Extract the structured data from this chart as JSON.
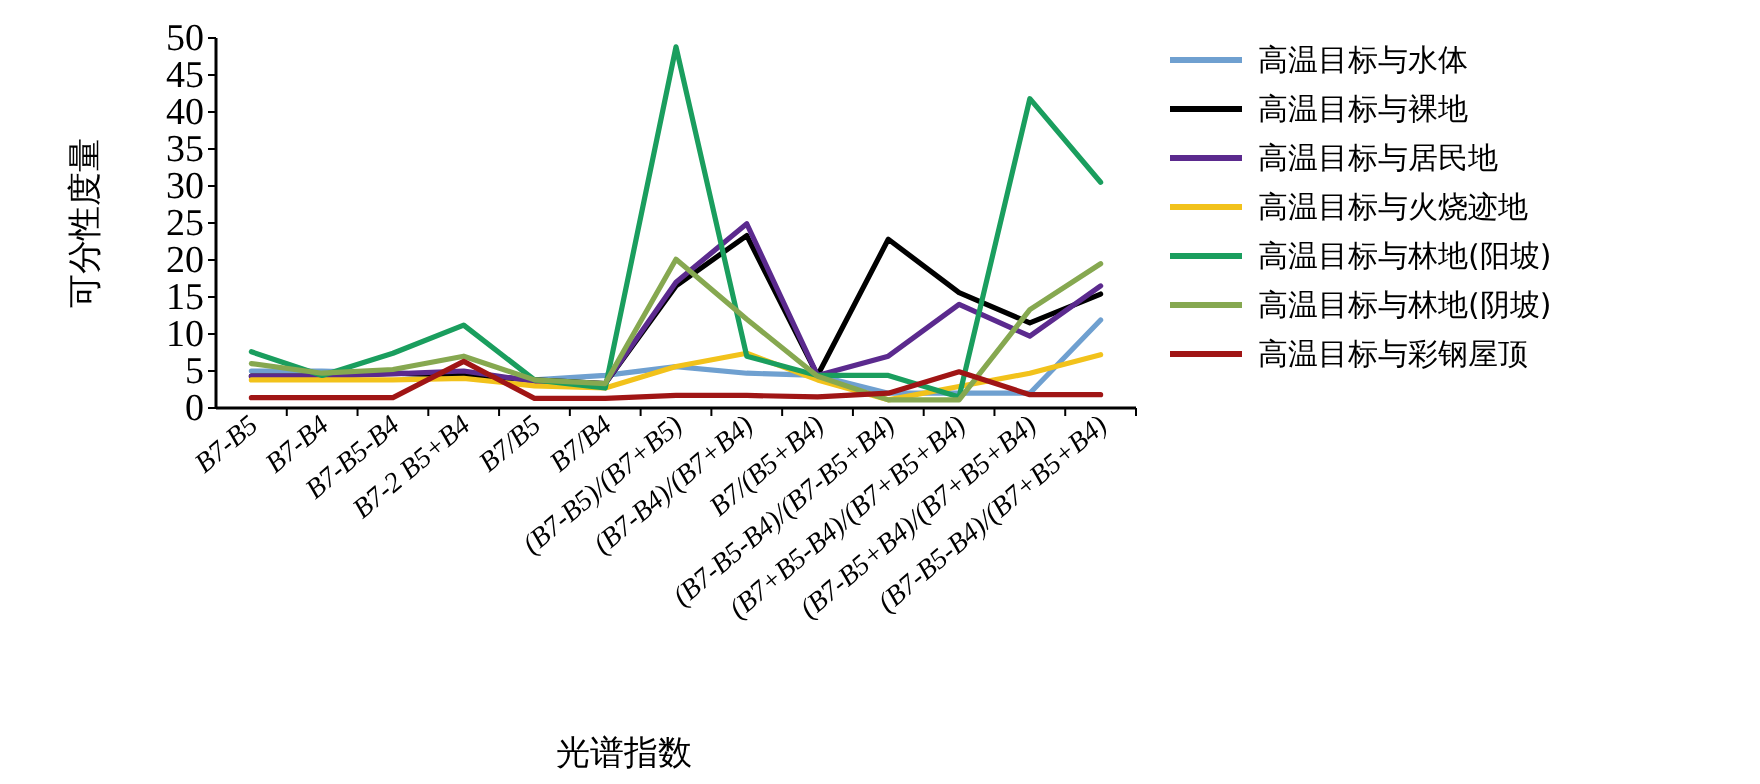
{
  "chart_data": {
    "type": "line",
    "xlabel": "光谱指数",
    "ylabel": "可分性度量",
    "legend": "right",
    "ylim": [
      0,
      50
    ],
    "yticks": [
      0,
      5,
      10,
      15,
      20,
      25,
      30,
      35,
      40,
      45,
      50
    ],
    "categories": [
      "B7-B5",
      "B7-B4",
      "B7-B5-B4",
      "B7-2 B5+B4",
      "B7/B5",
      "B7/B4",
      "(B7-B5)/(B7+B5)",
      "(B7-B4)/(B7+B4)",
      "B7/(B5+B4)",
      "(B7-B5-B4)/(B7-B5+B4)",
      "(B7+B5-B4)/(B7+B5+B4)",
      "(B7-B5+B4)/(B7+B5+B4)",
      "(B7-B5-B4)/(B7+B5+B4)"
    ],
    "series": [
      {
        "name": "高温目标与水体",
        "color": "#6fa0d0",
        "values": [
          5,
          5,
          4.7,
          4.4,
          3.8,
          4.4,
          5.6,
          4.7,
          4.4,
          2,
          2,
          2,
          11.9
        ]
      },
      {
        "name": "高温目标与裸地",
        "color": "#000000",
        "values": [
          4.3,
          4.3,
          4.7,
          4.4,
          3.8,
          3.3,
          16.5,
          23.3,
          4.4,
          22.8,
          15.6,
          11.5,
          15.4
        ]
      },
      {
        "name": "高温目标与居民地",
        "color": "#5b2a8e",
        "values": [
          4.3,
          4.3,
          4.6,
          5,
          3.6,
          3.3,
          17,
          24.9,
          4.4,
          7,
          14,
          9.7,
          16.5
        ]
      },
      {
        "name": "高温目标与火烧迹地",
        "color": "#f2c21b",
        "values": [
          3.8,
          3.8,
          3.8,
          4,
          3,
          2.7,
          5.6,
          7.4,
          3.8,
          1.1,
          2.9,
          4.7,
          7.2
        ]
      },
      {
        "name": "高温目标与林地(阳坡)",
        "color": "#1a9e5e",
        "values": [
          7.6,
          4.4,
          7.4,
          11.2,
          3.8,
          2.7,
          48.8,
          7,
          4.4,
          4.4,
          1.5,
          41.8,
          30.5
        ]
      },
      {
        "name": "高温目标与林地(阴坡)",
        "color": "#86a850",
        "values": [
          6,
          4.7,
          5.2,
          7,
          3.8,
          3.3,
          20.1,
          12,
          4.3,
          1.1,
          1.1,
          13.3,
          19.5
        ]
      },
      {
        "name": "高温目标与彩钢屋顶",
        "color": "#a01515",
        "values": [
          1.4,
          1.4,
          1.4,
          6.3,
          1.3,
          1.3,
          1.7,
          1.7,
          1.5,
          2,
          4.9,
          1.8,
          1.8
        ]
      }
    ]
  }
}
